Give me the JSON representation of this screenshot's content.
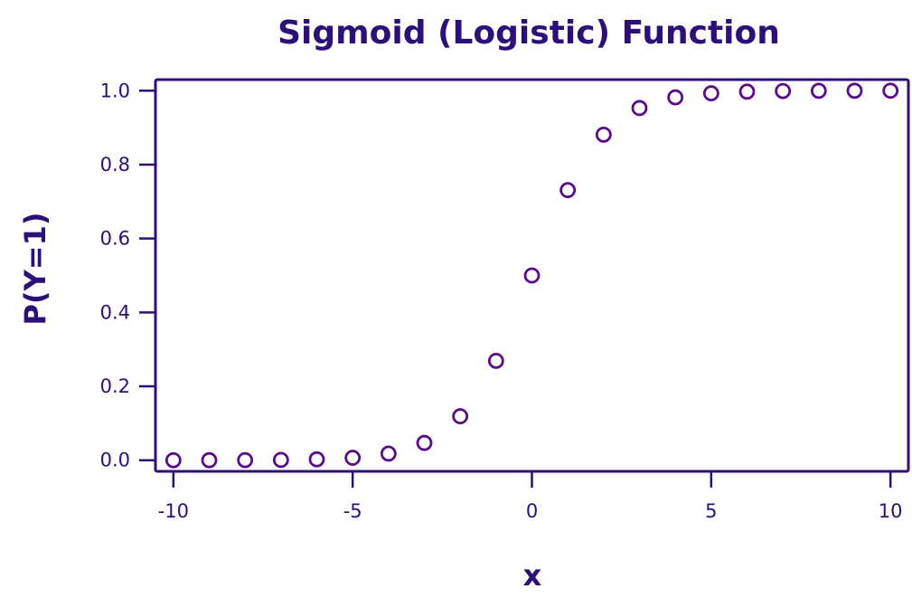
{
  "chart_data": {
    "type": "scatter",
    "title": "Sigmoid (Logistic) Function",
    "xlabel": "x",
    "ylabel": "P(Y=1)",
    "xlim": [
      -10.5,
      10.5
    ],
    "ylim": [
      -0.03,
      1.03
    ],
    "x_ticks": [
      -10,
      -5,
      0,
      5,
      10
    ],
    "x_tick_labels": [
      "-10",
      "-5",
      "0",
      "5",
      "10"
    ],
    "y_ticks": [
      0.0,
      0.2,
      0.4,
      0.6,
      0.8,
      1.0
    ],
    "y_tick_labels": [
      "0.0",
      "0.2",
      "0.4",
      "0.6",
      "0.8",
      "1.0"
    ],
    "grid": false,
    "colors": {
      "text": "#2d0f7a",
      "points": "#5a0a8a"
    },
    "series": [
      {
        "marker": "open-circle",
        "points": [
          {
            "x": -10,
            "y": 0.0
          },
          {
            "x": -9,
            "y": 0.0001
          },
          {
            "x": -8,
            "y": 0.0003
          },
          {
            "x": -7,
            "y": 0.0009
          },
          {
            "x": -6,
            "y": 0.0025
          },
          {
            "x": -5,
            "y": 0.0067
          },
          {
            "x": -4,
            "y": 0.018
          },
          {
            "x": -3,
            "y": 0.047
          },
          {
            "x": -2,
            "y": 0.119
          },
          {
            "x": -1,
            "y": 0.269
          },
          {
            "x": 0,
            "y": 0.5
          },
          {
            "x": 1,
            "y": 0.731
          },
          {
            "x": 2,
            "y": 0.881
          },
          {
            "x": 3,
            "y": 0.953
          },
          {
            "x": 4,
            "y": 0.982
          },
          {
            "x": 5,
            "y": 0.993
          },
          {
            "x": 6,
            "y": 0.9975
          },
          {
            "x": 7,
            "y": 0.9991
          },
          {
            "x": 8,
            "y": 0.9997
          },
          {
            "x": 9,
            "y": 0.9999
          },
          {
            "x": 10,
            "y": 1.0
          }
        ]
      }
    ]
  }
}
